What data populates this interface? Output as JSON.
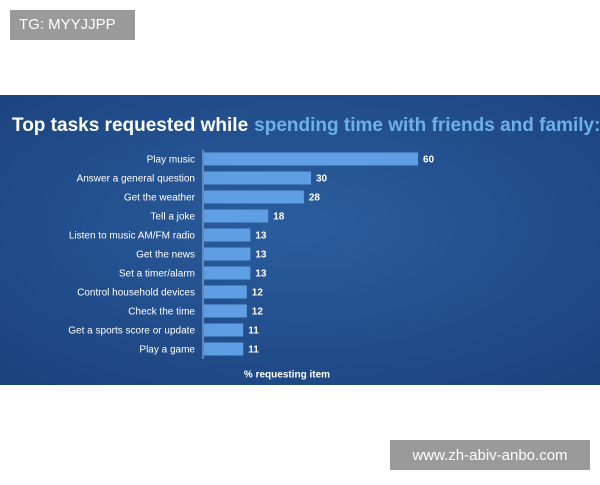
{
  "watermarks": {
    "top": "TG: MYYJJPP",
    "bottom": "www.zh-abiv-anbo.com"
  },
  "chart_data": {
    "type": "bar",
    "orientation": "horizontal",
    "title": [
      "Top tasks requested while",
      "spending time with friends and family:"
    ],
    "categories": [
      "Play music",
      "Answer a general question",
      "Get the weather",
      "Tell a joke",
      "Listen to music AM/FM radio",
      "Get the news",
      "Set a timer/alarm",
      "Control household devices",
      "Check the time",
      "Get a sports score or update",
      "Play a game"
    ],
    "values": [
      60,
      30,
      28,
      18,
      13,
      13,
      13,
      12,
      12,
      11,
      11
    ],
    "color": "#5d9fe2",
    "x_label": "% requesting item"
  }
}
